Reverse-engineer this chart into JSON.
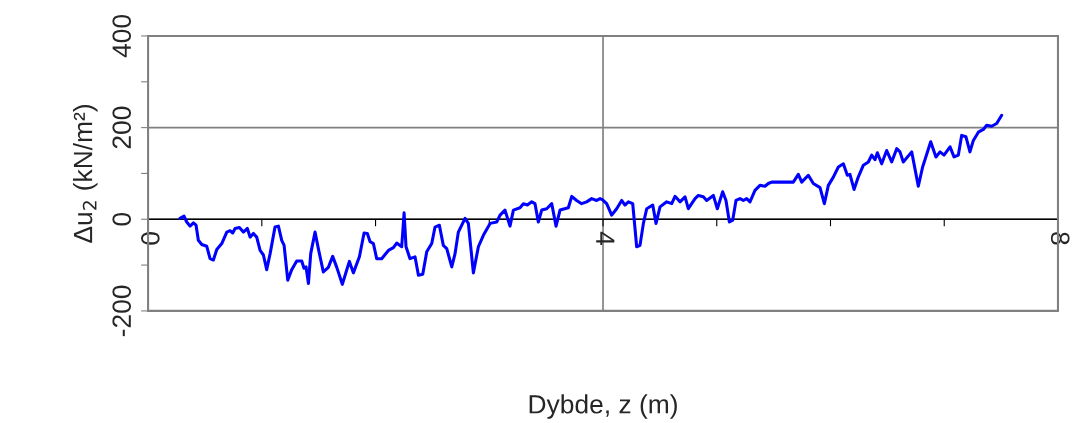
{
  "chart_data": {
    "type": "line",
    "xlabel": "Dybde, z (m)",
    "ylabel": "Δu$_{2}$ (kN/m²)",
    "xlim": [
      0,
      8
    ],
    "ylim": [
      -200,
      400
    ],
    "xticks": [
      0,
      {
        "value": 1,
        "label": null
      },
      {
        "value": 2,
        "label": null
      },
      {
        "value": 3,
        "label": null
      },
      4,
      {
        "value": 5,
        "label": null
      },
      {
        "value": 6,
        "label": null
      },
      {
        "value": 7,
        "label": null
      },
      8
    ],
    "yticks": [
      -200,
      {
        "value": -100,
        "label": null
      },
      0,
      {
        "value": 100,
        "label": null
      },
      200,
      {
        "value": 300,
        "label": null
      },
      400
    ],
    "grid": true,
    "line_style": "solid",
    "marker": "none",
    "series": [
      {
        "color": "#0000ff",
        "x": [
          0.281,
          0.316,
          0.34,
          0.369,
          0.399,
          0.422,
          0.442,
          0.472,
          0.516,
          0.545,
          0.574,
          0.604,
          0.648,
          0.692,
          0.721,
          0.744,
          0.765,
          0.803,
          0.838,
          0.873,
          0.897,
          0.926,
          0.955,
          0.985,
          1.014,
          1.043,
          1.073,
          1.116,
          1.146,
          1.175,
          1.196,
          1.228,
          1.263,
          1.307,
          1.351,
          1.371,
          1.389,
          1.41,
          1.43,
          1.468,
          1.497,
          1.541,
          1.585,
          1.623,
          1.659,
          1.708,
          1.741,
          1.77,
          1.805,
          1.858,
          1.899,
          1.928,
          1.952,
          1.981,
          2.01,
          2.054,
          2.113,
          2.157,
          2.186,
          2.23,
          2.251,
          2.268,
          2.303,
          2.347,
          2.377,
          2.415,
          2.45,
          2.494,
          2.523,
          2.561,
          2.596,
          2.626,
          2.67,
          2.699,
          2.728,
          2.787,
          2.816,
          2.86,
          2.904,
          2.948,
          3.007,
          3.065,
          3.095,
          3.138,
          3.182,
          3.212,
          3.27,
          3.3,
          3.335,
          3.373,
          3.402,
          3.431,
          3.461,
          3.505,
          3.549,
          3.587,
          3.622,
          3.695,
          3.725,
          3.768,
          3.812,
          3.856,
          3.9,
          3.944,
          3.974,
          3.994,
          4.032,
          4.076,
          4.12,
          4.164,
          4.193,
          4.223,
          4.261,
          4.296,
          4.325,
          4.355,
          4.384,
          4.437,
          4.466,
          4.501,
          4.56,
          4.604,
          4.633,
          4.677,
          4.721,
          4.75,
          4.809,
          4.838,
          4.882,
          4.911,
          4.97,
          5.005,
          5.052,
          5.081,
          5.111,
          5.14,
          5.169,
          5.204,
          5.234,
          5.263,
          5.292,
          5.336,
          5.38,
          5.424,
          5.453,
          5.483,
          5.527,
          5.673,
          5.717,
          5.747,
          5.805,
          5.849,
          5.908,
          5.946,
          5.981,
          6.025,
          6.069,
          6.113,
          6.148,
          6.171,
          6.207,
          6.244,
          6.289,
          6.333,
          6.362,
          6.391,
          6.412,
          6.45,
          6.494,
          6.538,
          6.582,
          6.611,
          6.64,
          6.714,
          6.772,
          6.81,
          6.881,
          6.927,
          6.963,
          6.998,
          7.051,
          7.086,
          7.124,
          7.153,
          7.191,
          7.226,
          7.256,
          7.3,
          7.344,
          7.373,
          7.417,
          7.461,
          7.505
        ],
        "values": [
          2,
          7,
          -6,
          -15,
          -8,
          -13,
          -46,
          -55,
          -59,
          -86,
          -89,
          -66,
          -53,
          -28,
          -25,
          -30,
          -20,
          -18,
          -28,
          -20,
          -39,
          -31,
          -39,
          -68,
          -78,
          -110,
          -75,
          -17,
          -15,
          -46,
          -57,
          -133,
          -110,
          -91,
          -91,
          -107,
          -104,
          -140,
          -75,
          -28,
          -64,
          -115,
          -105,
          -81,
          -105,
          -142,
          -115,
          -92,
          -117,
          -82,
          -30,
          -31,
          -49,
          -53,
          -86,
          -86,
          -68,
          -62,
          -52,
          -60,
          14,
          -60,
          -86,
          -82,
          -122,
          -120,
          -71,
          -53,
          -17,
          -13,
          -57,
          -64,
          -104,
          -75,
          -28,
          2,
          -9,
          -117,
          -60,
          -35,
          -9,
          -6,
          9,
          20,
          -15,
          20,
          25,
          34,
          31,
          38,
          34,
          -6,
          20,
          23,
          34,
          -15,
          20,
          25,
          50,
          41,
          34,
          38,
          45,
          41,
          45,
          43,
          34,
          9,
          23,
          41,
          31,
          38,
          34,
          -60,
          -57,
          -9,
          23,
          31,
          -9,
          27,
          38,
          34,
          50,
          38,
          49,
          23,
          45,
          52,
          49,
          41,
          52,
          23,
          60,
          41,
          -6,
          -2,
          41,
          45,
          41,
          45,
          38,
          63,
          74,
          72,
          78,
          81,
          81,
          81,
          98,
          81,
          96,
          78,
          69,
          34,
          74,
          92,
          114,
          121,
          96,
          98,
          65,
          92,
          118,
          125,
          140,
          130,
          145,
          121,
          150,
          125,
          154,
          147,
          125,
          147,
          72,
          114,
          169,
          136,
          147,
          140,
          158,
          136,
          140,
          183,
          180,
          147,
          172,
          190,
          196,
          205,
          203,
          209,
          227
        ]
      }
    ]
  }
}
